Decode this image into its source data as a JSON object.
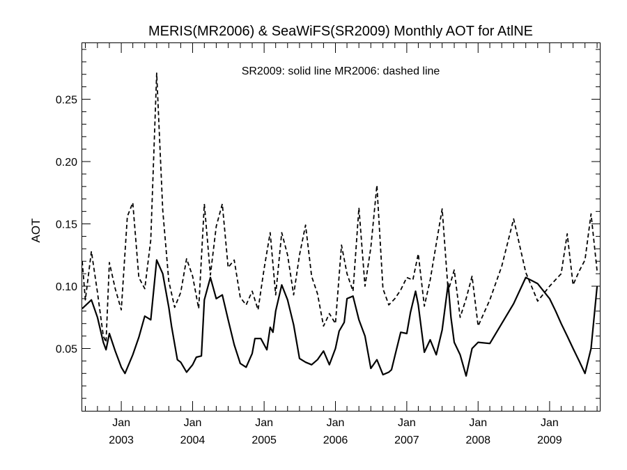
{
  "chart_data": {
    "type": "line",
    "title": "MERIS(MR2006) & SeaWiFS(SR2009) Monthly AOT for AtlNE",
    "annotation": "SR2009: solid line   MR2006: dashed line",
    "ylabel": "AOT",
    "xlabel": "",
    "xlim": [
      "2002-06-15",
      "2009-09-15"
    ],
    "ylim": [
      0.0,
      0.295
    ],
    "grid": false,
    "yticks": [
      {
        "value": 0.05,
        "label": "0.05"
      },
      {
        "value": 0.1,
        "label": "0.10"
      },
      {
        "value": 0.15,
        "label": "0.15"
      },
      {
        "value": 0.2,
        "label": "0.20"
      },
      {
        "value": 0.25,
        "label": "0.25"
      }
    ],
    "xticks": [
      {
        "date": "2003-01-01",
        "month": "Jan",
        "year": "2003"
      },
      {
        "date": "2004-01-01",
        "month": "Jan",
        "year": "2004"
      },
      {
        "date": "2005-01-01",
        "month": "Jan",
        "year": "2005"
      },
      {
        "date": "2006-01-01",
        "month": "Jan",
        "year": "2006"
      },
      {
        "date": "2007-01-01",
        "month": "Jan",
        "year": "2007"
      },
      {
        "date": "2008-01-01",
        "month": "Jan",
        "year": "2008"
      },
      {
        "date": "2009-01-01",
        "month": "Jan",
        "year": "2009"
      }
    ],
    "series": [
      {
        "style": "solid",
        "color": "#000000",
        "x": [
          "2002-06-15",
          "2002-08-01",
          "2002-09-01",
          "2002-10-01",
          "2002-10-15",
          "2002-11-01",
          "2002-12-01",
          "2003-01-01",
          "2003-01-20",
          "2003-03-01",
          "2003-04-01",
          "2003-05-01",
          "2003-06-01",
          "2003-07-01",
          "2003-08-01",
          "2003-09-01",
          "2003-09-15",
          "2003-10-15",
          "2003-11-01",
          "2003-12-01",
          "2004-01-01",
          "2004-01-20",
          "2004-02-15",
          "2004-03-01",
          "2004-04-01",
          "2004-05-01",
          "2004-06-01",
          "2004-07-01",
          "2004-08-01",
          "2004-09-01",
          "2004-10-01",
          "2004-11-01",
          "2004-11-15",
          "2004-12-15",
          "2005-01-15",
          "2005-02-01",
          "2005-02-15",
          "2005-03-01",
          "2005-04-01",
          "2005-05-01",
          "2005-06-01",
          "2005-07-01",
          "2005-08-01",
          "2005-09-01",
          "2005-10-01",
          "2005-11-01",
          "2005-12-01",
          "2006-01-01",
          "2006-01-20",
          "2006-02-15",
          "2006-03-01",
          "2006-04-01",
          "2006-05-01",
          "2006-06-01",
          "2006-07-01",
          "2006-08-01",
          "2006-09-01",
          "2006-10-01",
          "2006-10-15",
          "2006-11-01",
          "2006-12-01",
          "2007-01-01",
          "2007-01-20",
          "2007-02-15",
          "2007-03-01",
          "2007-04-01",
          "2007-05-01",
          "2007-06-01",
          "2007-07-01",
          "2007-08-01",
          "2007-08-15",
          "2007-09-01",
          "2007-10-01",
          "2007-11-01",
          "2007-12-01",
          "2008-01-01",
          "2008-03-01",
          "2008-05-01",
          "2008-07-01",
          "2008-09-01",
          "2008-11-01",
          "2009-01-01",
          "2009-02-01",
          "2009-03-01",
          "2009-04-01",
          "2009-05-01",
          "2009-06-01",
          "2009-07-01",
          "2009-08-01",
          "2009-09-01"
        ],
        "y": [
          0.082,
          0.089,
          0.075,
          0.055,
          0.049,
          0.062,
          0.048,
          0.035,
          0.03,
          0.045,
          0.059,
          0.076,
          0.073,
          0.121,
          0.11,
          0.083,
          0.068,
          0.041,
          0.039,
          0.031,
          0.037,
          0.043,
          0.044,
          0.089,
          0.107,
          0.09,
          0.093,
          0.073,
          0.053,
          0.038,
          0.035,
          0.046,
          0.058,
          0.058,
          0.049,
          0.067,
          0.063,
          0.08,
          0.101,
          0.089,
          0.069,
          0.042,
          0.039,
          0.037,
          0.041,
          0.048,
          0.037,
          0.05,
          0.064,
          0.071,
          0.09,
          0.092,
          0.073,
          0.06,
          0.034,
          0.041,
          0.029,
          0.031,
          0.033,
          0.044,
          0.063,
          0.062,
          0.079,
          0.096,
          0.085,
          0.047,
          0.057,
          0.045,
          0.065,
          0.102,
          0.075,
          0.055,
          0.045,
          0.028,
          0.05,
          0.055,
          0.054,
          0.07,
          0.086,
          0.107,
          0.102,
          0.09,
          0.08,
          0.07,
          0.06,
          0.05,
          0.04,
          0.03,
          0.05,
          0.1
        ]
      },
      {
        "style": "dashed",
        "color": "#000000",
        "x": [
          "2002-06-15",
          "2002-07-01",
          "2002-08-01",
          "2002-09-01",
          "2002-10-01",
          "2002-10-15",
          "2002-11-01",
          "2002-12-01",
          "2003-01-01",
          "2003-02-01",
          "2003-03-01",
          "2003-04-01",
          "2003-05-01",
          "2003-06-01",
          "2003-07-01",
          "2003-08-01",
          "2003-09-01",
          "2003-10-01",
          "2003-11-01",
          "2003-12-01",
          "2004-01-01",
          "2004-02-01",
          "2004-03-01",
          "2004-04-01",
          "2004-05-01",
          "2004-06-01",
          "2004-07-01",
          "2004-08-01",
          "2004-09-01",
          "2004-10-01",
          "2004-11-01",
          "2004-12-01",
          "2005-01-01",
          "2005-02-01",
          "2005-03-01",
          "2005-04-01",
          "2005-05-01",
          "2005-06-01",
          "2005-07-01",
          "2005-08-01",
          "2005-09-01",
          "2005-10-01",
          "2005-11-01",
          "2005-12-01",
          "2006-01-01",
          "2006-02-01",
          "2006-03-01",
          "2006-04-01",
          "2006-05-01",
          "2006-06-01",
          "2006-07-01",
          "2006-08-01",
          "2006-09-01",
          "2006-10-01",
          "2006-11-01",
          "2006-12-01",
          "2007-01-01",
          "2007-02-01",
          "2007-03-01",
          "2007-04-01",
          "2007-05-01",
          "2007-06-01",
          "2007-07-01",
          "2007-08-01",
          "2007-09-01",
          "2007-10-01",
          "2007-11-01",
          "2007-12-01",
          "2008-01-01",
          "2008-03-01",
          "2008-05-01",
          "2008-07-01",
          "2008-09-01",
          "2008-11-01",
          "2009-01-01",
          "2009-03-01",
          "2009-04-01",
          "2009-05-01",
          "2009-06-01",
          "2009-07-01",
          "2009-08-01",
          "2009-09-01"
        ],
        "y": [
          0.12,
          0.089,
          0.128,
          0.095,
          0.06,
          0.055,
          0.119,
          0.098,
          0.081,
          0.156,
          0.167,
          0.107,
          0.098,
          0.137,
          0.271,
          0.161,
          0.104,
          0.083,
          0.095,
          0.122,
          0.108,
          0.082,
          0.166,
          0.109,
          0.148,
          0.166,
          0.115,
          0.121,
          0.091,
          0.085,
          0.096,
          0.081,
          0.114,
          0.143,
          0.093,
          0.143,
          0.125,
          0.093,
          0.125,
          0.149,
          0.108,
          0.094,
          0.068,
          0.078,
          0.07,
          0.133,
          0.11,
          0.096,
          0.163,
          0.1,
          0.131,
          0.181,
          0.098,
          0.085,
          0.09,
          0.097,
          0.107,
          0.105,
          0.126,
          0.084,
          0.105,
          0.134,
          0.162,
          0.096,
          0.113,
          0.075,
          0.09,
          0.108,
          0.068,
          0.089,
          0.116,
          0.154,
          0.111,
          0.088,
          0.1,
          0.11,
          0.142,
          0.101,
          0.112,
          0.121,
          0.158,
          0.112
        ]
      }
    ]
  }
}
